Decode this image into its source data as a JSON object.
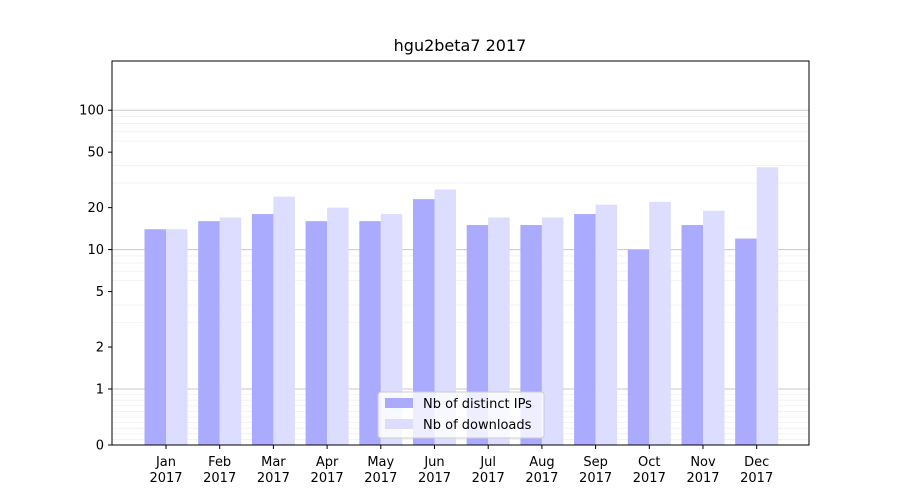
{
  "chart_data": {
    "type": "bar",
    "title": "hgu2beta7 2017",
    "xlabel": "",
    "ylabel": "",
    "y_scale": "symlog",
    "ylim": [
      0,
      120
    ],
    "y_ticks": [
      0,
      1,
      2,
      5,
      10,
      20,
      50,
      100
    ],
    "y_tick_labels": [
      "0",
      "1",
      "2",
      "5",
      "10",
      "20",
      "50",
      "100"
    ],
    "categories": [
      [
        "Jan",
        "2017"
      ],
      [
        "Feb",
        "2017"
      ],
      [
        "Mar",
        "2017"
      ],
      [
        "Apr",
        "2017"
      ],
      [
        "May",
        "2017"
      ],
      [
        "Jun",
        "2017"
      ],
      [
        "Jul",
        "2017"
      ],
      [
        "Aug",
        "2017"
      ],
      [
        "Sep",
        "2017"
      ],
      [
        "Oct",
        "2017"
      ],
      [
        "Nov",
        "2017"
      ],
      [
        "Dec",
        "2017"
      ]
    ],
    "series": [
      {
        "name": "Nb of distinct IPs",
        "color": "#aaaaff",
        "values": [
          14,
          16,
          18,
          16,
          16,
          23,
          15,
          15,
          18,
          10,
          15,
          12
        ]
      },
      {
        "name": "Nb of downloads",
        "color": "#ddddff",
        "values": [
          14,
          17,
          24,
          20,
          18,
          27,
          17,
          17,
          21,
          22,
          19,
          39
        ]
      }
    ],
    "legend": "lower-center",
    "grid": "horizontal"
  }
}
